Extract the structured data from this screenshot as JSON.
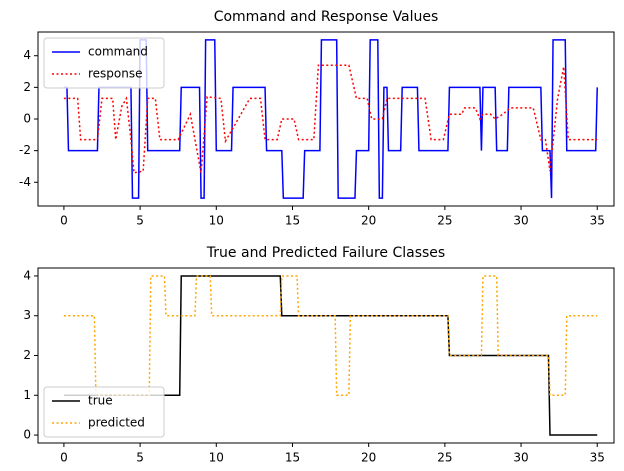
{
  "chart_data": [
    {
      "type": "line",
      "title": "Command and Response Values",
      "xlim": [
        -1.7,
        36.1
      ],
      "xticks": [
        0,
        5,
        10,
        15,
        20,
        25,
        30,
        35
      ],
      "ylim": [
        -5.5,
        5.5
      ],
      "yticks": [
        -4,
        -2,
        0,
        2,
        4
      ],
      "legend": "upper left",
      "series": [
        {
          "name": "command",
          "color": "#0000ff",
          "linestyle": "solid",
          "x": [
            0,
            0.2,
            0.3,
            2.2,
            2.3,
            4.4,
            4.5,
            4.9,
            5.0,
            5.4,
            5.5,
            7.6,
            7.7,
            8.9,
            9.0,
            9.2,
            9.3,
            9.9,
            10.0,
            11.0,
            11.1,
            13.2,
            13.3,
            14.3,
            14.4,
            15.7,
            15.8,
            16.8,
            16.9,
            17.9,
            18.0,
            19.1,
            19.2,
            20.0,
            20.1,
            20.6,
            20.7,
            20.9,
            21.0,
            21.2,
            21.3,
            22.1,
            22.2,
            23.2,
            23.3,
            25.2,
            25.3,
            27.3,
            27.4,
            27.5,
            28.3,
            28.4,
            29.1,
            29.2,
            31.3,
            31.4,
            31.9,
            32.0,
            32.1,
            32.9,
            33.0,
            34.9,
            35
          ],
          "values": [
            2,
            2,
            -2,
            -2,
            2,
            2,
            -5,
            -5,
            5,
            5,
            -2,
            -2,
            2,
            2,
            -5,
            -5,
            5,
            5,
            -2,
            -2,
            2,
            2,
            -2,
            -2,
            -5,
            -5,
            -2,
            -2,
            5,
            5,
            -5,
            -5,
            -2,
            -2,
            5,
            5,
            -5,
            -5,
            2,
            2,
            -2,
            -2,
            2,
            2,
            -2,
            -2,
            2,
            2,
            -2,
            2,
            2,
            -2,
            -2,
            2,
            2,
            -2,
            -2,
            -5,
            5,
            5,
            -2,
            -2,
            2
          ]
        },
        {
          "name": "response",
          "color": "#ff0000",
          "linestyle": "dotted",
          "x": [
            0,
            0.9,
            1.1,
            2.2,
            2.5,
            3.2,
            3.4,
            3.8,
            4.1,
            4.4,
            4.6,
            5.2,
            5.5,
            6.0,
            6.3,
            7.5,
            8.3,
            9.0,
            9.4,
            10.3,
            10.6,
            11.2,
            12.2,
            12.9,
            13.2,
            14.0,
            14.3,
            15.1,
            15.4,
            16.4,
            16.7,
            18.7,
            19.2,
            19.9,
            20.2,
            20.9,
            21.2,
            23.7,
            24.1,
            24.9,
            25.3,
            26.1,
            26.3,
            27.0,
            27.3,
            27.5,
            28.0,
            28.3,
            28.8,
            29.3,
            30.8,
            31.3,
            31.6,
            31.9,
            32.4,
            32.8,
            33.1,
            35
          ],
          "values": [
            1.3,
            1.3,
            -1.3,
            -1.3,
            1.3,
            1.3,
            -1.3,
            0.8,
            1.3,
            -1.3,
            -3.4,
            -3.3,
            1.3,
            1.3,
            -1.3,
            -1.3,
            0.3,
            -3.4,
            1.4,
            1.3,
            -1.4,
            -0.4,
            1.3,
            1.3,
            -1.3,
            -1.3,
            0,
            0,
            -1.3,
            -1.3,
            3.4,
            3.4,
            1.3,
            1.3,
            0,
            0,
            1.3,
            1.3,
            -1.3,
            -1.3,
            0.3,
            0.3,
            0.7,
            0.7,
            0,
            0.3,
            0.3,
            0,
            0.3,
            0.7,
            0.7,
            -1.3,
            -1.3,
            -3.3,
            1.3,
            3.3,
            -1.3,
            -1.3
          ]
        }
      ]
    },
    {
      "type": "line",
      "title": "True and Predicted Failure Classes",
      "xlim": [
        -1.7,
        36.1
      ],
      "xticks": [
        0,
        5,
        10,
        15,
        20,
        25,
        30,
        35
      ],
      "ylim": [
        -0.2,
        4.2
      ],
      "yticks": [
        0,
        1,
        2,
        3,
        4
      ],
      "legend": "lower left",
      "series": [
        {
          "name": "true",
          "color": "#000000",
          "linestyle": "solid",
          "x": [
            0,
            7.6,
            7.7,
            14.2,
            14.3,
            25.2,
            25.3,
            31.8,
            31.9,
            35
          ],
          "values": [
            1,
            1,
            4,
            4,
            3,
            3,
            2,
            2,
            0,
            0
          ]
        },
        {
          "name": "predicted",
          "color": "#ffa500",
          "linestyle": "dotted",
          "x": [
            0,
            2,
            2.1,
            5.6,
            5.7,
            6.6,
            6.7,
            8.6,
            8.7,
            9.6,
            9.7,
            14.2,
            14.3,
            15.3,
            15.4,
            17.8,
            17.9,
            18.7,
            18.8,
            25.2,
            25.3,
            27.4,
            27.5,
            28.4,
            28.5,
            31.8,
            31.9,
            32.9,
            33,
            35
          ],
          "values": [
            3,
            3,
            1,
            1,
            4,
            4,
            3,
            3,
            4,
            4,
            3,
            3,
            4,
            4,
            3,
            3,
            1,
            1,
            3,
            3,
            2,
            2,
            4,
            4,
            2,
            2,
            1,
            1,
            3,
            3
          ]
        }
      ]
    }
  ]
}
